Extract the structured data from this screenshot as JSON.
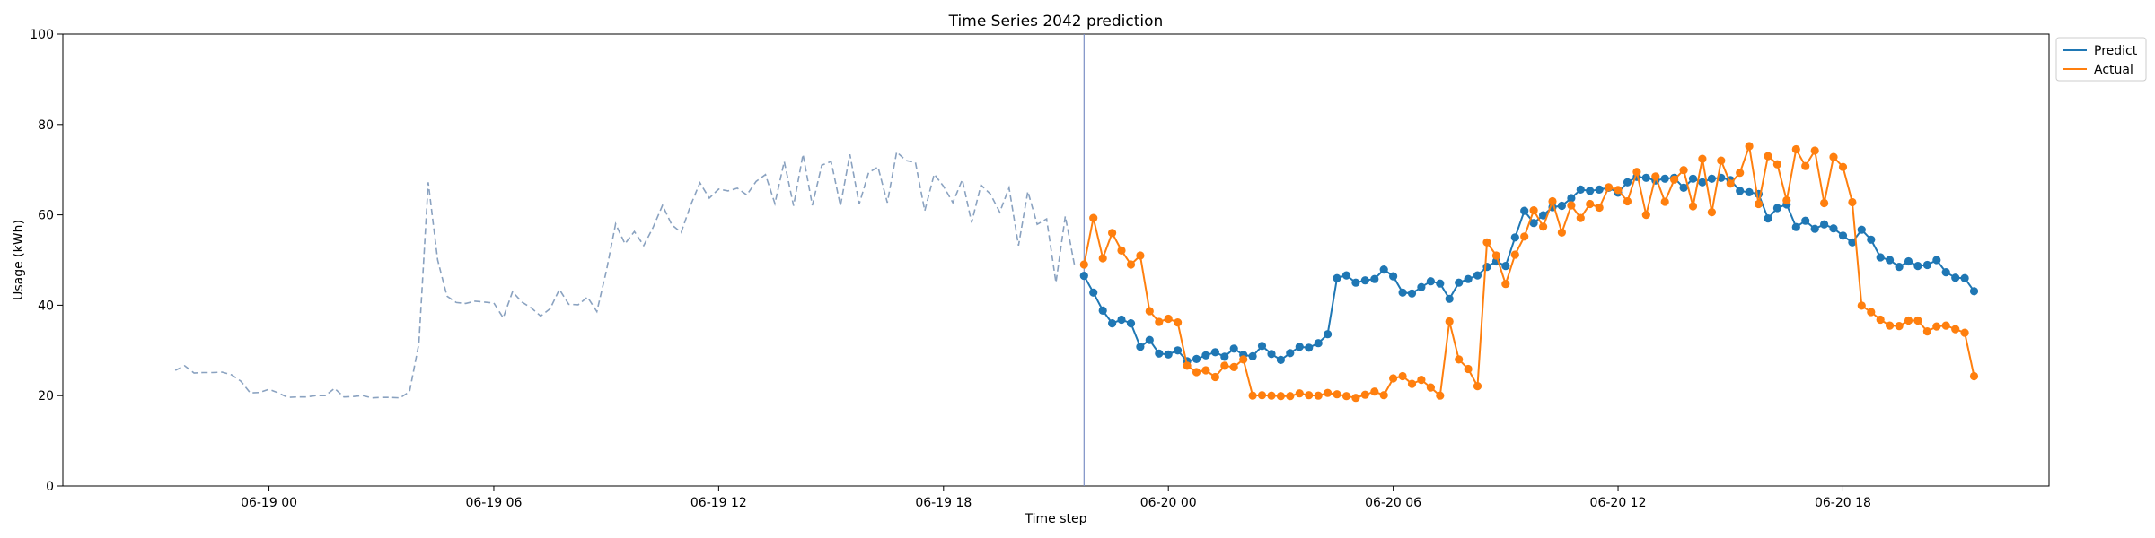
{
  "chart_data": {
    "type": "line",
    "title": "Time Series 2042 prediction",
    "xlabel": "Time step",
    "ylabel": "Usage (kWh)",
    "ylim": [
      0,
      100
    ],
    "yticks": [
      0,
      20,
      40,
      60,
      80,
      100
    ],
    "x_range_hours": [
      -5.5,
      47.5
    ],
    "xticks": [
      {
        "hour": 0,
        "label": "06-19 00"
      },
      {
        "hour": 6,
        "label": "06-19 06"
      },
      {
        "hour": 12,
        "label": "06-19 12"
      },
      {
        "hour": 18,
        "label": "06-19 18"
      },
      {
        "hour": 24,
        "label": "06-20 00"
      },
      {
        "hour": 30,
        "label": "06-20 06"
      },
      {
        "hour": 36,
        "label": "06-20 12"
      },
      {
        "hour": 42,
        "label": "06-20 18"
      }
    ],
    "grid": false,
    "legend": {
      "position": "top-right",
      "entries": [
        "Predict",
        "Actual"
      ]
    },
    "forecast_start_hour": 21.75,
    "history": {
      "start_hour": -2.5,
      "step_hours": 0.25,
      "color": "#8aa2c0",
      "style": "dashed",
      "values": [
        25.6,
        26.6,
        25.0,
        25.1,
        25.1,
        25.2,
        24.6,
        23.2,
        20.6,
        20.7,
        21.4,
        20.6,
        19.6,
        19.7,
        19.7,
        20.0,
        20.0,
        21.6,
        19.7,
        19.8,
        20.0,
        19.5,
        19.6,
        19.6,
        19.5,
        20.9,
        31.5,
        67.2,
        50.0,
        42.0,
        40.6,
        40.4,
        40.9,
        40.7,
        40.5,
        37.2,
        43.0,
        40.7,
        39.4,
        37.6,
        39.2,
        43.5,
        40.2,
        40.1,
        41.8,
        38.6,
        47.5,
        58.0,
        53.6,
        56.3,
        53.2,
        57.2,
        62.1,
        57.8,
        56.1,
        62.1,
        67.1,
        63.7,
        65.7,
        65.3,
        65.9,
        64.4,
        67.4,
        68.9,
        62.5,
        71.8,
        62.0,
        73.4,
        62.1,
        71.0,
        71.8,
        62.0,
        73.4,
        62.4,
        69.3,
        70.6,
        62.7,
        73.9,
        72.0,
        71.6,
        60.9,
        69.0,
        66.3,
        62.7,
        67.8,
        58.3,
        66.6,
        64.6,
        60.6,
        66.0,
        53.2,
        65.2,
        57.9,
        59.1,
        45.0,
        59.7,
        48.6
      ]
    },
    "series": [
      {
        "name": "Predict",
        "color": "#1f77b4",
        "start_hour": 21.75,
        "step_hours": 0.25,
        "values": [
          46.5,
          42.8,
          38.8,
          36.0,
          36.8,
          36.0,
          30.8,
          32.3,
          29.3,
          29.1,
          30.0,
          27.6,
          28.1,
          28.9,
          29.6,
          28.6,
          30.4,
          29.0,
          28.7,
          31.0,
          29.2,
          27.9,
          29.4,
          30.8,
          30.6,
          31.6,
          33.6,
          46.0,
          46.6,
          45.0,
          45.5,
          45.8,
          47.9,
          46.4,
          42.8,
          42.6,
          44.0,
          45.3,
          44.8,
          41.4,
          45.0,
          45.8,
          46.6,
          48.5,
          49.7,
          48.7,
          55.0,
          60.9,
          58.2,
          59.9,
          61.7,
          62.0,
          63.7,
          65.6,
          65.3,
          65.6,
          66.0,
          64.9,
          67.2,
          68.4,
          68.2,
          67.6,
          68.0,
          68.2,
          66.0,
          68.0,
          67.2,
          68.0,
          68.2,
          67.7,
          65.3,
          65.0,
          64.6,
          59.2,
          61.5,
          62.3,
          57.3,
          58.7,
          56.9,
          57.9,
          57.0,
          55.4,
          53.9,
          56.7,
          54.5,
          50.6,
          50.0,
          48.5,
          49.7,
          48.7,
          48.9,
          50.0,
          47.3,
          46.1,
          46.0,
          43.1
        ]
      },
      {
        "name": "Actual",
        "color": "#ff7f0e",
        "start_hour": 21.75,
        "step_hours": 0.25,
        "values": [
          49.0,
          59.3,
          50.4,
          56.0,
          52.1,
          49.0,
          51.0,
          38.7,
          36.3,
          37.0,
          36.2,
          26.6,
          25.2,
          25.6,
          24.1,
          26.6,
          26.3,
          28.0,
          20.0,
          20.1,
          20.0,
          19.9,
          19.9,
          20.5,
          20.1,
          20.0,
          20.6,
          20.3,
          19.9,
          19.5,
          20.2,
          20.9,
          20.1,
          23.8,
          24.3,
          22.6,
          23.5,
          21.8,
          20.0,
          36.4,
          28.0,
          25.9,
          22.1,
          53.9,
          51.0,
          44.7,
          51.2,
          55.2,
          61.0,
          57.4,
          63.0,
          56.1,
          62.1,
          59.3,
          62.4,
          61.6,
          66.1,
          65.5,
          63.0,
          69.5,
          60.0,
          68.5,
          62.9,
          67.8,
          69.9,
          61.9,
          72.4,
          60.6,
          72.0,
          66.9,
          69.3,
          75.2,
          62.4,
          73.0,
          71.2,
          63.2,
          74.5,
          70.8,
          74.2,
          62.6,
          72.8,
          70.6,
          62.8,
          39.9,
          38.5,
          36.8,
          35.5,
          35.4,
          36.6,
          36.6,
          34.2,
          35.3,
          35.5,
          34.7,
          33.9,
          24.3
        ]
      }
    ]
  }
}
